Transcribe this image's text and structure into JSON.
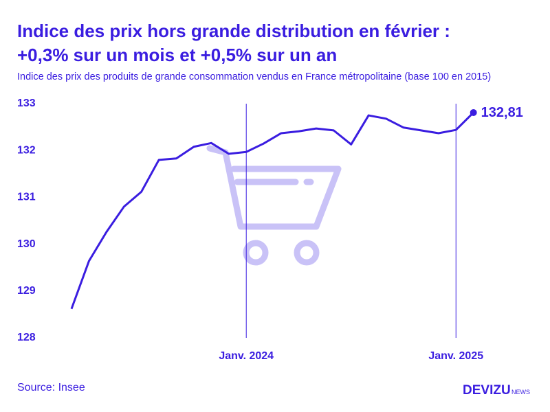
{
  "chart_data": {
    "type": "line",
    "title": [
      "Indice des prix hors grande distribution en février :",
      "+0,3% sur un mois et +0,5% sur un an"
    ],
    "subtitle": "Indice des prix des produits de grande consommation vendus en France métropolitaine (base 100 en 2015)",
    "categories": [
      null,
      null,
      null,
      null,
      null,
      null,
      null,
      null,
      null,
      null,
      "Janv. 2024",
      null,
      null,
      null,
      null,
      null,
      null,
      null,
      null,
      null,
      null,
      null,
      "Janv. 2025",
      null
    ],
    "series": [
      {
        "name": "Indice",
        "color": "#3a1de0",
        "values": [
          128.62,
          129.64,
          130.26,
          130.8,
          131.12,
          131.8,
          131.83,
          132.08,
          132.16,
          131.93,
          131.97,
          132.15,
          132.37,
          132.41,
          132.47,
          132.43,
          132.13,
          132.75,
          132.68,
          132.49,
          132.43,
          132.37,
          132.44,
          132.81
        ],
        "value_labels": [
          null,
          null,
          null,
          null,
          null,
          null,
          null,
          null,
          null,
          null,
          null,
          null,
          null,
          null,
          null,
          null,
          null,
          null,
          null,
          null,
          null,
          null,
          null,
          "132,81"
        ]
      }
    ],
    "ylim": [
      128,
      133
    ],
    "yticks": [
      128,
      129,
      130,
      131,
      132,
      133
    ],
    "grid": false
  },
  "source": "Source: Insee",
  "brand": {
    "name": "DEVIZU",
    "suffix": "NEWS"
  }
}
